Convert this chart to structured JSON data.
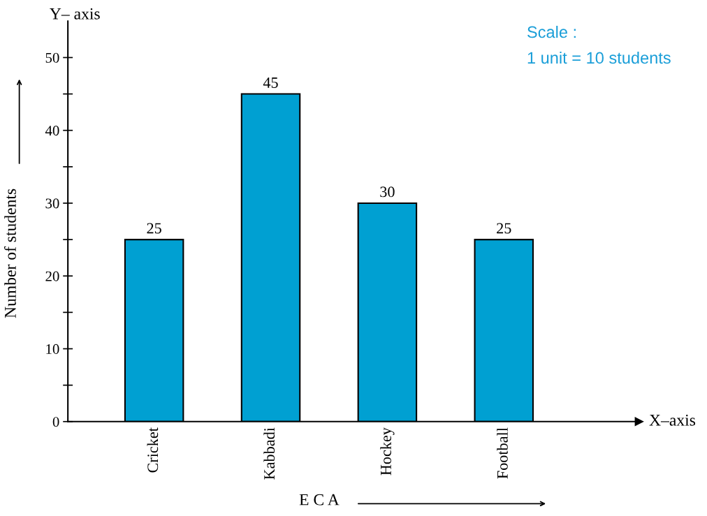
{
  "chart_data": {
    "type": "bar",
    "categories": [
      "Cricket",
      "Kabbadi",
      "Hockey",
      "Football"
    ],
    "values": [
      25,
      45,
      30,
      25
    ],
    "color": "#00a0d2",
    "data_labels": true,
    "xlabel": "E C A",
    "ylabel": "Number of students",
    "ylim": [
      0,
      55
    ],
    "yticks": [
      0,
      {
        "value": 5,
        "label": null
      },
      10,
      {
        "value": 15,
        "label": null
      },
      20,
      {
        "value": 25,
        "label": null
      },
      30,
      {
        "value": 35,
        "label": null
      },
      40,
      {
        "value": 45,
        "label": null
      },
      50
    ],
    "grid": false,
    "annotations": [
      "Y– axis",
      "X–axis",
      "Scale :",
      "1 unit = 10 students"
    ]
  }
}
